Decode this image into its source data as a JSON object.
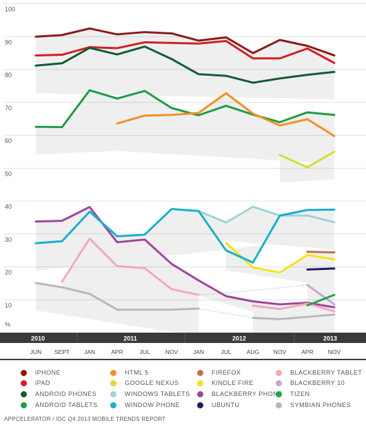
{
  "chart_data": {
    "type": "line",
    "unit_label": "%",
    "ylim": [
      0,
      100
    ],
    "yticks": [
      10,
      20,
      30,
      40,
      50,
      60,
      70,
      80,
      90,
      100
    ],
    "x_months": [
      "JUN",
      "SEPT",
      "JAN",
      "APR",
      "JUL",
      "NOV",
      "JAN",
      "JUL",
      "AUG",
      "NOV",
      "APR",
      "NOV"
    ],
    "x_years": [
      "2010",
      "2011",
      "2012",
      "2013"
    ],
    "series": [
      {
        "name": "iPHONE",
        "color": "#8b1a1a",
        "start": 0,
        "values": [
          90,
          90.5,
          92.5,
          90.7,
          91.4,
          91,
          88.8,
          89.8,
          85,
          89,
          87.2,
          84.3
        ]
      },
      {
        "name": "iPAD",
        "color": "#d11f23",
        "start": 0,
        "values": [
          84.3,
          84.5,
          86.8,
          86.5,
          88.3,
          88.1,
          87.9,
          88.7,
          83.4,
          83.4,
          86.4,
          82
        ]
      },
      {
        "name": "ANDROID PHONES",
        "color": "#0f5c34",
        "start": 0,
        "values": [
          81.2,
          81.9,
          86.6,
          84.6,
          87,
          83.2,
          78.6,
          78.1,
          76,
          77.3,
          78.4,
          79.3
        ]
      },
      {
        "name": "ANDROID TABLETS",
        "color": "#1f9a47",
        "start": 0,
        "values": [
          62.6,
          62.5,
          73.7,
          71.2,
          73.5,
          68.3,
          66.1,
          69,
          66.3,
          64,
          67,
          66.2
        ]
      },
      {
        "name": "HTML 5",
        "color": "#f19024",
        "start": 3,
        "values": [
          63.6,
          66,
          66.2,
          66.8,
          72.8,
          66.6,
          63,
          64.9,
          59.8
        ]
      },
      {
        "name": "GOOGLE NEXUS",
        "color": "#d3dc2f",
        "start": 9,
        "values": [
          54,
          50.3,
          55
        ]
      },
      {
        "name": "WINDOWS TABLETS",
        "color": "#9ed4d2",
        "start": 6,
        "values": [
          37,
          33.5,
          38.3,
          35.6,
          35.6,
          33.6
        ]
      },
      {
        "name": "BLACKBERRY PHONE",
        "color": "#a0459c",
        "start": 0,
        "values": [
          33.8,
          34,
          38.2,
          27.5,
          28.3,
          20.9,
          15.9,
          11.1,
          9.5,
          8.6,
          9.1,
          7.7
        ]
      },
      {
        "name": "FIREFOX",
        "color": "#c2704a",
        "start": 10,
        "values": [
          24.6,
          24.4
        ]
      },
      {
        "name": "KINDLE FIRE",
        "color": "#f6e21e",
        "start": 7,
        "values": [
          27.3,
          19.8,
          18.3,
          23.6,
          22.3
        ]
      },
      {
        "name": "UBUNTU",
        "color": "#1d1a5e",
        "start": 10,
        "values": [
          19.2,
          19.5
        ]
      },
      {
        "name": "WINDOW PHONE",
        "color": "#18b1c8",
        "start": 0,
        "values": [
          27.2,
          27.8,
          36.8,
          29.3,
          29.8,
          37.6,
          37,
          25,
          21.3,
          35.6,
          37.3,
          37.4
        ]
      },
      {
        "name": "BLACKBERRY TABLET",
        "color": "#f4a7bf",
        "start": 1,
        "values": [
          15.5,
          28.6,
          20.2,
          19.6,
          13.2,
          11.5,
          null,
          8.2,
          7.2,
          8.8,
          6.5
        ]
      },
      {
        "name": "BLACKBERRY 10",
        "color": "#c7a7d6",
        "start": 10,
        "values": [
          14.5,
          8.6
        ]
      },
      {
        "name": "TIZEN",
        "color": "#23a548",
        "start": 10,
        "values": [
          8.3,
          11.5
        ]
      },
      {
        "name": "SYMBIAN PHONES",
        "color": "#b8b8b8",
        "start": 0,
        "values": [
          15.1,
          13.8,
          11.8,
          7,
          7,
          7,
          7.3,
          null,
          4.5,
          4.1,
          4.8,
          5.5
        ]
      }
    ],
    "legend_order": [
      "iPHONE",
      "iPAD",
      "ANDROID PHONES",
      "ANDROID TABLETS",
      "HTML 5",
      "GOOGLE NEXUS",
      "WINDOWS TABLETS",
      "WINDOW PHONE",
      "FIREFOX",
      "KINDLE FIRE",
      "BLACKBERRY PHONE",
      "UBUNTU",
      "BLACKBERRY TABLET",
      "BLACKBERRY 10",
      "TIZEN",
      "SYMBIAN PHONES"
    ]
  },
  "footer": "APPCELERATOR / IDC Q4 2013 MOBILE TRENDS REPORT"
}
